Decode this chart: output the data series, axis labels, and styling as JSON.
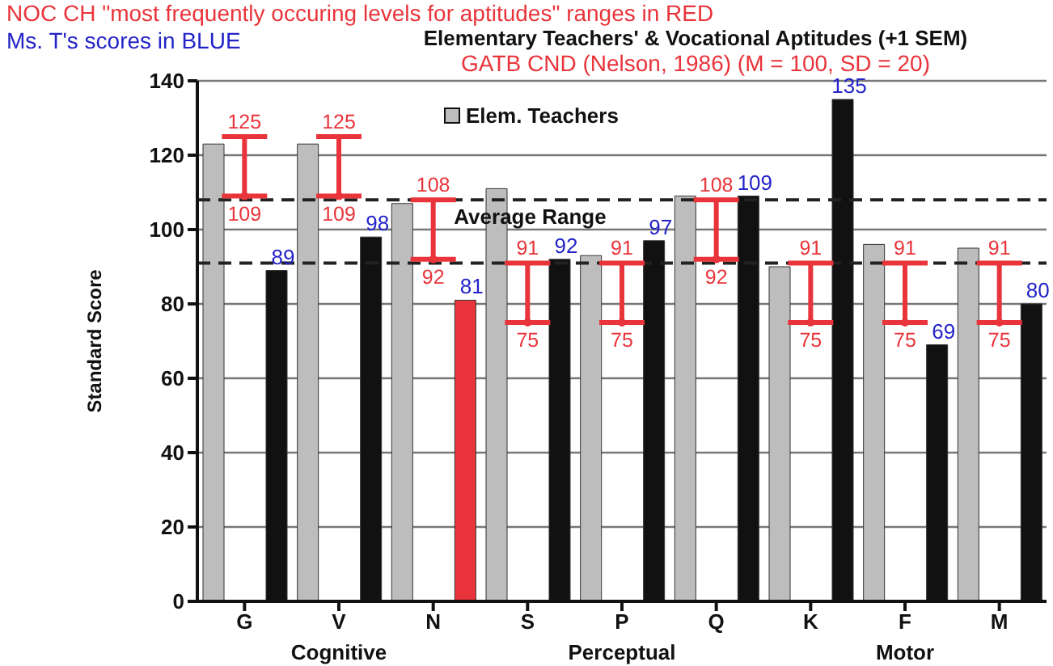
{
  "chart_data": {
    "type": "bar",
    "title": "Elementary Teachers' & Vocational Aptitudes (+1 SEM)",
    "ylabel": "Standard Score",
    "categories": [
      "G",
      "V",
      "N",
      "S",
      "P",
      "Q",
      "K",
      "F",
      "M"
    ],
    "series": [
      {
        "type": "scatter",
        "marker": "circle",
        "color": "#e8343a",
        "values": [
          109,
          109,
          92,
          75,
          75,
          92,
          75,
          75,
          75
        ],
        "errors": [
          [
            109,
            125
          ],
          [
            109,
            125
          ],
          [
            92,
            108
          ],
          [
            75,
            91
          ],
          [
            75,
            91
          ],
          [
            92,
            108
          ],
          [
            75,
            91
          ],
          [
            75,
            91
          ],
          [
            75,
            91
          ]
        ],
        "value_labels": [
          "109",
          "109",
          "92",
          "75",
          "75",
          "92",
          "75",
          "75",
          "75"
        ]
      },
      {
        "name": "Elem. Teachers",
        "color": "#bdbdbd",
        "values": [
          123,
          123,
          107,
          111,
          93,
          109,
          90,
          96,
          95
        ]
      },
      {
        "color": "#111111",
        "colors": [
          "#111111",
          "#111111",
          "#e8343a",
          "#111111",
          "#111111",
          "#111111",
          "#111111",
          "#111111",
          "#111111"
        ],
        "values": [
          89,
          98,
          81,
          92,
          97,
          109,
          135,
          69,
          80
        ],
        "value_labels": [
          "89",
          "98",
          "81",
          "92",
          "97",
          "109",
          "135",
          "69",
          "80"
        ]
      }
    ],
    "ylim": [
      0,
      140
    ],
    "yticks": [
      0,
      20,
      40,
      60,
      80,
      100,
      120,
      140
    ],
    "grid": "y",
    "legend": "top",
    "ref_lines": [
      {
        "axis": "y",
        "value": 108,
        "line_style": "dashed",
        "label": "Average Range"
      },
      {
        "axis": "y",
        "value": 91,
        "line_style": "dashed"
      }
    ],
    "annotations": [
      "NOC CH \"most frequently occuring levels for aptitudes\" ranges in RED",
      "Ms. T's scores in BLUE",
      "GATB CND (Nelson, 1986) (M = 100, SD = 20)",
      {
        "text": "125",
        "x": "G",
        "y": 125
      },
      {
        "text": "125",
        "x": "V",
        "y": 125
      },
      {
        "text": "108",
        "x": "N",
        "y": 108
      },
      {
        "text": "91",
        "x": "S",
        "y": 91
      },
      {
        "text": "91",
        "x": "P",
        "y": 91
      },
      {
        "text": "108",
        "x": "Q",
        "y": 108
      },
      {
        "text": "91",
        "x": "K",
        "y": 91
      },
      {
        "text": "91",
        "x": "F",
        "y": 91
      },
      {
        "text": "91",
        "x": "M",
        "y": 91
      },
      "Cognitive",
      "Perceptual",
      "Motor"
    ]
  }
}
